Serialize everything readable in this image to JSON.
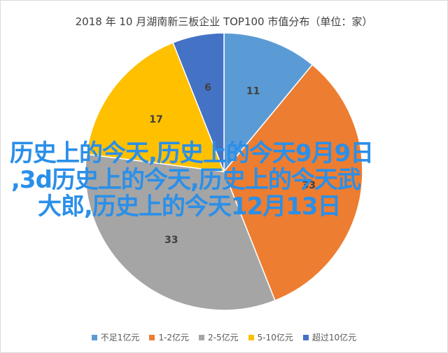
{
  "chart_data": {
    "type": "pie",
    "title": "2018 年 10 月湖南新三板企业 TOP100 市值分布（单位：家）",
    "categories": [
      "不足1亿元",
      "1-2亿元",
      "2-5亿元",
      "5-10亿元",
      "超过10亿元"
    ],
    "values": [
      11,
      33,
      33,
      17,
      6
    ],
    "colors": [
      "#5b9bd5",
      "#ed7d31",
      "#a5a5a5",
      "#ffc000",
      "#4472c4"
    ],
    "start_angle_deg": 0,
    "direction": "clockwise",
    "legend_position": "bottom"
  },
  "overlay_text": {
    "line1": "历史上的今天,历史上的今天9月9日",
    "line2": ",3d历史上的今天,历史上的今天武",
    "line3": "大郎,历史上的今天12月13日"
  }
}
